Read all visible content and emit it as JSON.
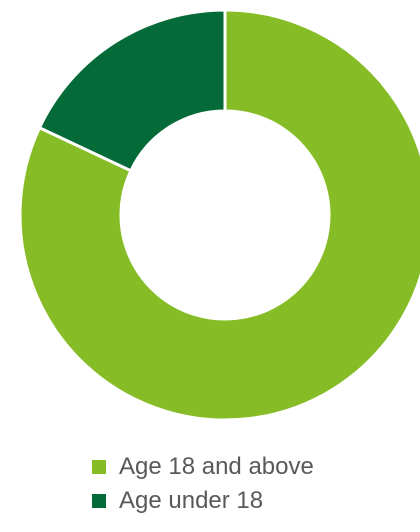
{
  "chart_data": {
    "type": "pie",
    "variant": "donut",
    "title": "",
    "categories": [
      "Age 18 and above",
      "Age under 18"
    ],
    "values": [
      82,
      18
    ],
    "colors": [
      "#86BC25",
      "#046A38"
    ],
    "legend": {
      "position": "bottom",
      "items": [
        {
          "label": "Age 18 and above",
          "color": "#86BC25"
        },
        {
          "label": "Age under 18",
          "color": "#046A38"
        }
      ]
    }
  }
}
